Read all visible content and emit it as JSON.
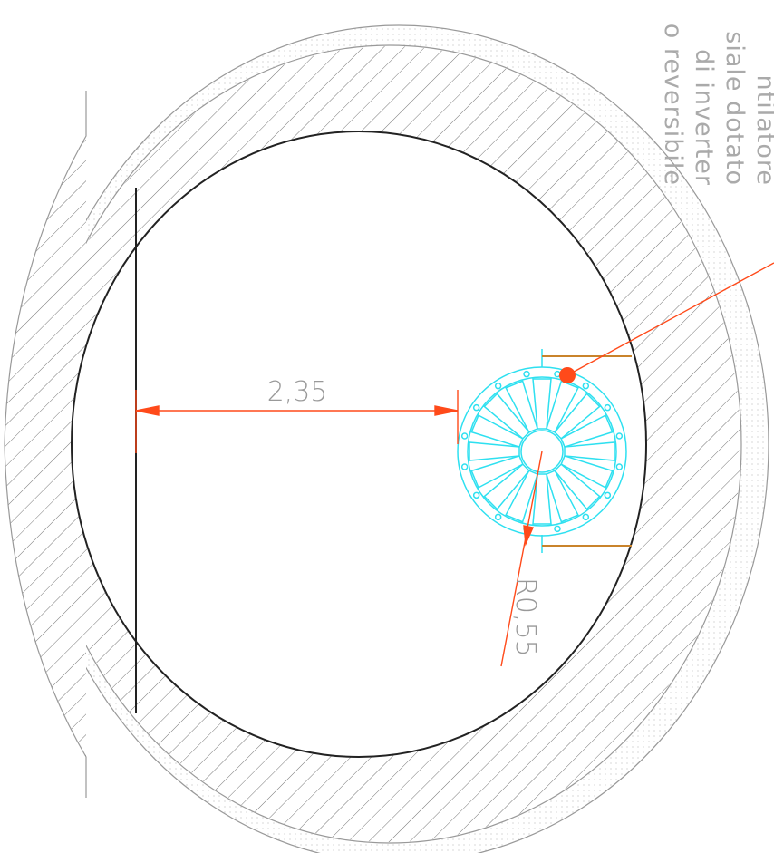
{
  "dimensions": {
    "width": "2,35",
    "radius": "R0,55"
  },
  "notes": [
    "ntilatore",
    "siale dotato",
    "di inverter",
    "o reversibile"
  ]
}
